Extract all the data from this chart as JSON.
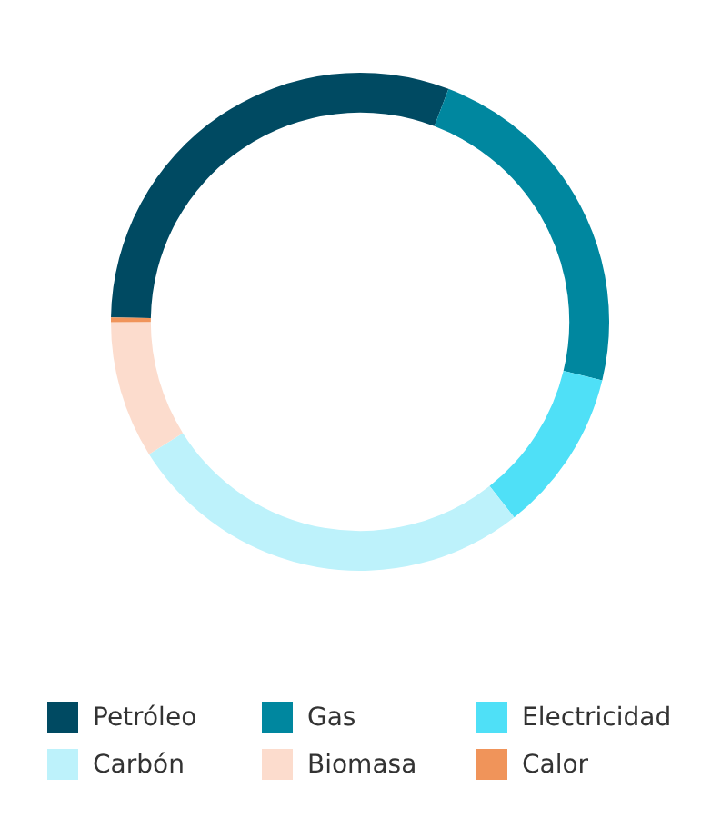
{
  "chart_data": {
    "type": "donut",
    "categories": [
      "Petróleo",
      "Gas",
      "Electricidad",
      "Carbón",
      "Biomasa",
      "Calor"
    ],
    "values": [
      30.5,
      23,
      10.6,
      26.7,
      8.9,
      0.3
    ],
    "colors": [
      "#004a62",
      "#00879f",
      "#4fe0f7",
      "#bdf2fb",
      "#fcdccd",
      "#f0945a"
    ],
    "legend": "bottom"
  }
}
